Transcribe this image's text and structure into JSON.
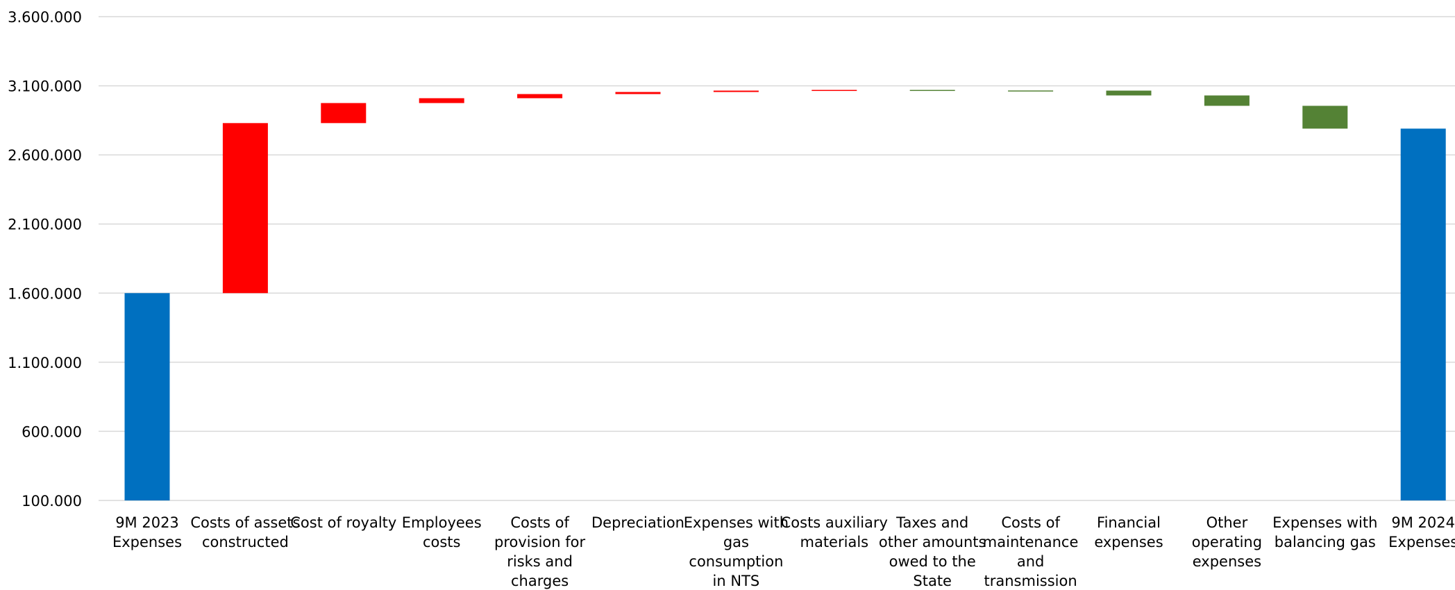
{
  "chart_data": {
    "type": "waterfall",
    "title": "",
    "xlabel": "",
    "ylabel": "",
    "ylim": [
      100000,
      3600000
    ],
    "yticks": [
      100000,
      600000,
      1100000,
      1600000,
      2100000,
      2600000,
      3100000,
      3600000
    ],
    "ytick_labels": [
      "100.000",
      "600.000",
      "1.100.000",
      "1.600.000",
      "2.100.000",
      "2.600.000",
      "3.100.000",
      "3.600.000"
    ],
    "grid": true,
    "colors": {
      "total": "#0070C0",
      "increase": "#FF0000",
      "decrease": "#548235",
      "grid": "#D9D9D9"
    },
    "categories": [
      "9M 2023 Expenses",
      "Costs of assets constructed",
      "Cost of royalty",
      "Employees costs",
      "Costs of provision for risks and charges",
      "Depreciation",
      "Expenses with gas consumption in NTS",
      "Costs auxiliary materials",
      "Taxes and other amounts owed to the State",
      "Costs of maintenance and transmission",
      "Financial expenses",
      "Other operating expenses",
      "Expenses with balancing gas",
      "9M 2024 Expenses"
    ],
    "category_label_lines": [
      [
        "9M 2023",
        "Expenses"
      ],
      [
        "Costs of assets",
        "constructed"
      ],
      [
        "Cost of royalty"
      ],
      [
        "Employees",
        "costs"
      ],
      [
        "Costs of",
        "provision for",
        "risks and",
        "charges"
      ],
      [
        "Depreciation"
      ],
      [
        "Expenses with",
        "gas",
        "consumption",
        "in NTS"
      ],
      [
        "Costs auxiliary",
        "materials"
      ],
      [
        "Taxes and",
        "other amounts",
        "owed to the",
        "State"
      ],
      [
        "Costs of",
        "maintenance",
        "and",
        "transmission"
      ],
      [
        "Financial",
        "expenses"
      ],
      [
        "Other",
        "operating",
        "expenses"
      ],
      [
        "Expenses with",
        "balancing gas"
      ],
      [
        "9M 2024",
        "Expenses"
      ]
    ],
    "bars": [
      {
        "kind": "total",
        "low": 100000,
        "high": 1600000
      },
      {
        "kind": "increase",
        "low": 1600000,
        "high": 2830000
      },
      {
        "kind": "increase",
        "low": 2830000,
        "high": 2975000
      },
      {
        "kind": "increase",
        "low": 2975000,
        "high": 3010000
      },
      {
        "kind": "increase",
        "low": 3010000,
        "high": 3040000
      },
      {
        "kind": "increase",
        "low": 3040000,
        "high": 3055000
      },
      {
        "kind": "increase",
        "low": 3055000,
        "high": 3065000
      },
      {
        "kind": "increase",
        "low": 3065000,
        "high": 3070000
      },
      {
        "kind": "decrease",
        "low": 3066000,
        "high": 3070000
      },
      {
        "kind": "decrease",
        "low": 3065000,
        "high": 3066000
      },
      {
        "kind": "decrease",
        "low": 3030000,
        "high": 3065000
      },
      {
        "kind": "decrease",
        "low": 2955000,
        "high": 3030000
      },
      {
        "kind": "decrease",
        "low": 2790000,
        "high": 2955000
      },
      {
        "kind": "total",
        "low": 100000,
        "high": 2790000
      }
    ]
  }
}
